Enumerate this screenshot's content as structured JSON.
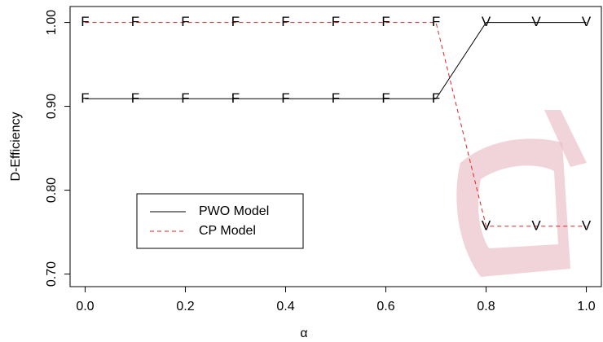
{
  "chart_data": {
    "type": "line",
    "x_label": "α",
    "y_label": "D-Efficiency",
    "x": [
      0,
      0.1,
      0.2,
      0.3,
      0.4,
      0.5,
      0.6,
      0.7,
      0.8,
      0.9,
      1.0
    ],
    "series": [
      {
        "name": "PWO Model",
        "color": "#000000",
        "linestyle": "solid",
        "values": [
          0.909,
          0.909,
          0.909,
          0.909,
          0.909,
          0.909,
          0.909,
          0.909,
          1.0,
          1.0,
          1.0
        ],
        "markers": [
          "F",
          "F",
          "F",
          "F",
          "F",
          "F",
          "F",
          "F",
          "V",
          "V",
          "V"
        ]
      },
      {
        "name": "CP Model",
        "color": "#dd2222",
        "linestyle": "dashed",
        "values": [
          1.0,
          1.0,
          1.0,
          1.0,
          1.0,
          1.0,
          1.0,
          1.0,
          0.757,
          0.757,
          0.757
        ],
        "markers": [
          "F",
          "F",
          "F",
          "F",
          "F",
          "F",
          "F",
          "F",
          "V",
          "V",
          "V"
        ]
      }
    ],
    "xlim": [
      -0.03,
      1.03
    ],
    "xticks": [
      {
        "value": 0,
        "label": "0.0"
      },
      {
        "value": 0.2,
        "label": "0.2"
      },
      {
        "value": 0.4,
        "label": "0.4"
      },
      {
        "value": 0.6,
        "label": "0.6"
      },
      {
        "value": 0.8,
        "label": "0.8"
      },
      {
        "value": 1.0,
        "label": "1.0"
      }
    ],
    "ylim": [
      0.685,
      1.019
    ],
    "yticks": [
      {
        "value": 0.7,
        "label": "0.70"
      },
      {
        "value": 0.8,
        "label": "0.80"
      },
      {
        "value": 0.9,
        "label": "0.90"
      },
      {
        "value": 1.0,
        "label": "1.00"
      }
    ],
    "grid": false,
    "legend": "lower-left"
  }
}
